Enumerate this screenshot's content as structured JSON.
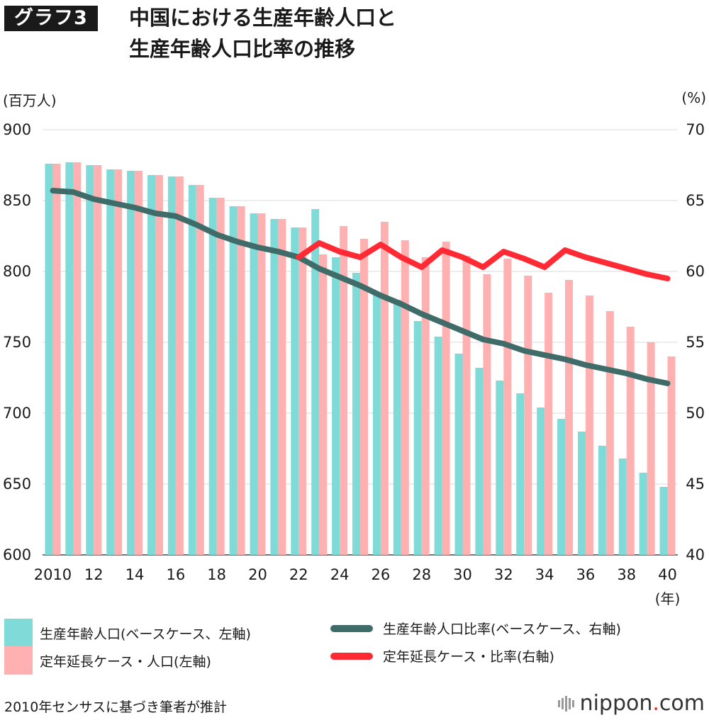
{
  "header": {
    "badge": "グラフ3",
    "title_line1": "中国における生産年齢人口と",
    "title_line2": "生産年齢人口比率の推移"
  },
  "colors": {
    "base_pop": "#7fdbd8",
    "ext_pop": "#ffb0b0",
    "base_ratio": "#3f6b68",
    "ext_ratio": "#ff2a33",
    "grid": "#d8d8d8"
  },
  "chart_data": {
    "type": "bar+line",
    "title": "中国における生産年齢人口と生産年齢人口比率の推移",
    "left_axis": {
      "unit_label": "(百万人)",
      "min": 600,
      "max": 900,
      "ticks": [
        "900",
        "850",
        "800",
        "750",
        "700",
        "650",
        "600"
      ]
    },
    "right_axis": {
      "unit_label": "(%)",
      "min": 40,
      "max": 70,
      "ticks": [
        "70",
        "65",
        "60",
        "55",
        "50",
        "45",
        "40"
      ]
    },
    "x_unit_label": "(年)",
    "x_tick_labels": [
      "2010",
      "12",
      "14",
      "16",
      "18",
      "20",
      "22",
      "24",
      "26",
      "28",
      "30",
      "32",
      "34",
      "36",
      "38",
      "40"
    ],
    "years": [
      2010,
      2011,
      2012,
      2013,
      2014,
      2015,
      2016,
      2017,
      2018,
      2019,
      2020,
      2021,
      2022,
      2023,
      2024,
      2025,
      2026,
      2027,
      2028,
      2029,
      2030,
      2031,
      2032,
      2033,
      2034,
      2035,
      2036,
      2037,
      2038,
      2039,
      2040
    ],
    "series": [
      {
        "name": "生産年齢人口(ベースケース、左軸)",
        "kind": "bar",
        "axis": "left",
        "values": [
          876,
          877,
          875,
          872,
          871,
          868,
          867,
          861,
          852,
          846,
          841,
          837,
          831,
          844,
          810,
          799,
          784,
          780,
          765,
          754,
          742,
          732,
          723,
          714,
          704,
          696,
          687,
          677,
          668,
          658,
          648
        ]
      },
      {
        "name": "定年延長ケース・人口(左軸)",
        "kind": "bar",
        "axis": "left",
        "values": [
          876,
          877,
          875,
          872,
          871,
          868,
          867,
          861,
          852,
          846,
          841,
          837,
          831,
          812,
          832,
          823,
          835,
          822,
          810,
          821,
          811,
          798,
          809,
          797,
          785,
          794,
          783,
          772,
          761,
          750,
          740
        ]
      },
      {
        "name": "生産年齢人口比率(ベースケース、右軸)",
        "kind": "line",
        "axis": "right",
        "values": [
          65.7,
          65.6,
          65.1,
          64.8,
          64.5,
          64.1,
          63.9,
          63.3,
          62.6,
          62.1,
          61.7,
          61.4,
          61.0,
          60.2,
          59.6,
          59.0,
          58.3,
          57.7,
          57.0,
          56.4,
          55.8,
          55.2,
          54.9,
          54.4,
          54.1,
          53.8,
          53.4,
          53.1,
          52.8,
          52.4,
          52.1
        ]
      },
      {
        "name": "定年延長ケース・比率(右軸)",
        "kind": "line",
        "axis": "right",
        "start_year": 2022,
        "values": [
          61.0,
          62.0,
          61.4,
          61.0,
          61.9,
          61.0,
          60.3,
          61.5,
          61.0,
          60.3,
          61.4,
          60.9,
          60.3,
          61.5,
          61.0,
          60.6,
          60.2,
          59.8,
          59.5
        ]
      }
    ]
  },
  "legend": {
    "base_pop": "生産年齢人口(ベースケース、左軸)",
    "base_ratio": "生産年齢人口比率(ベースケース、右軸)",
    "ext_pop": "定年延長ケース・人口(左軸)",
    "ext_ratio": "定年延長ケース・比率(右軸)"
  },
  "footer": {
    "source": "2010年センサスに基づき筆者が推計",
    "brand_main": "nippon",
    "brand_dot": ".",
    "brand_tld": "com"
  }
}
